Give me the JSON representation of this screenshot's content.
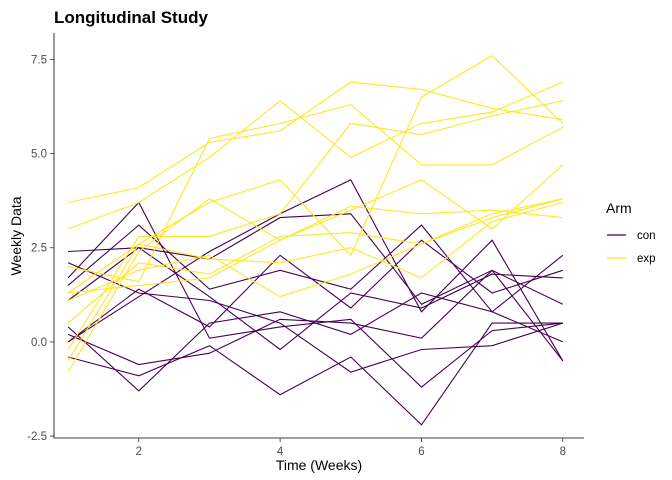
{
  "chart_data": {
    "type": "line",
    "title": "Longitudinal Study",
    "xlabel": "Time (Weeks)",
    "ylabel": "Weekly Data",
    "xlim": [
      0.8,
      8.3
    ],
    "ylim": [
      -2.55,
      8.2
    ],
    "x": [
      1,
      2,
      3,
      4,
      5,
      6,
      7,
      8
    ],
    "xticks": [
      2,
      4,
      6,
      8
    ],
    "xtick_labels": [
      "2",
      "4",
      "6",
      "8"
    ],
    "yticks": [
      -2.5,
      0,
      2.5,
      5,
      7.5
    ],
    "ytick_labels": [
      "-2.5",
      "0.0",
      "2.5",
      "5.0",
      "7.5"
    ],
    "grid": false,
    "legend": {
      "title": "Arm",
      "position": "right",
      "entries": [
        {
          "label": "con",
          "color": "#440154"
        },
        {
          "label": "exp",
          "color": "#fde725"
        }
      ]
    },
    "groups": [
      {
        "arm": "con",
        "color": "#440154",
        "series": [
          [
            0.2,
            -0.6,
            -0.3,
            0.6,
            0.5,
            0.1,
            1.9,
            -0.5
          ],
          [
            1.1,
            2.5,
            2.2,
            3.3,
            3.4,
            1.0,
            1.9,
            1.0
          ],
          [
            2.4,
            2.5,
            1.2,
            -0.2,
            1.3,
            0.9,
            1.8,
            1.7
          ],
          [
            0.0,
            1.2,
            2.4,
            3.4,
            4.3,
            0.8,
            2.7,
            -0.5
          ],
          [
            0.4,
            -1.3,
            0.5,
            0.8,
            0.2,
            1.3,
            0.8,
            2.3
          ],
          [
            1.7,
            3.7,
            0.1,
            0.4,
            0.6,
            -1.2,
            0.3,
            0.5
          ],
          [
            -0.4,
            -0.9,
            -0.1,
            -1.4,
            -0.4,
            -2.2,
            0.5,
            0.5
          ],
          [
            2.1,
            1.3,
            1.1,
            0.5,
            -0.8,
            -0.2,
            -0.1,
            0.5
          ],
          [
            0.0,
            1.4,
            0.4,
            2.3,
            0.9,
            2.7,
            1.3,
            1.9
          ],
          [
            1.5,
            3.1,
            1.4,
            1.9,
            1.4,
            3.1,
            0.8,
            0.0
          ]
        ]
      },
      {
        "arm": "exp",
        "color": "#fde725",
        "series": [
          [
            3.7,
            4.1,
            5.3,
            5.6,
            6.9,
            6.7,
            6.2,
            5.9
          ],
          [
            3.0,
            3.7,
            4.9,
            6.4,
            4.9,
            5.8,
            6.1,
            6.9
          ],
          [
            1.3,
            2.6,
            3.7,
            4.3,
            2.3,
            6.5,
            7.6,
            5.8
          ],
          [
            -0.8,
            2.4,
            3.8,
            2.7,
            3.6,
            3.4,
            3.5,
            3.3
          ],
          [
            -0.2,
            2.8,
            2.8,
            3.4,
            5.8,
            5.5,
            6.0,
            6.4
          ],
          [
            0.5,
            2.1,
            1.8,
            2.8,
            2.9,
            2.6,
            3.4,
            3.8
          ],
          [
            -0.5,
            2.6,
            2.2,
            2.1,
            2.5,
            1.7,
            3.2,
            3.7
          ],
          [
            2.0,
            1.6,
            5.4,
            5.8,
            6.3,
            4.7,
            4.7,
            5.7
          ],
          [
            1.3,
            1.5,
            1.7,
            2.7,
            3.5,
            4.3,
            3.0,
            4.7
          ],
          [
            1.1,
            1.9,
            2.3,
            1.2,
            1.8,
            2.6,
            3.3,
            3.8
          ]
        ]
      }
    ]
  }
}
